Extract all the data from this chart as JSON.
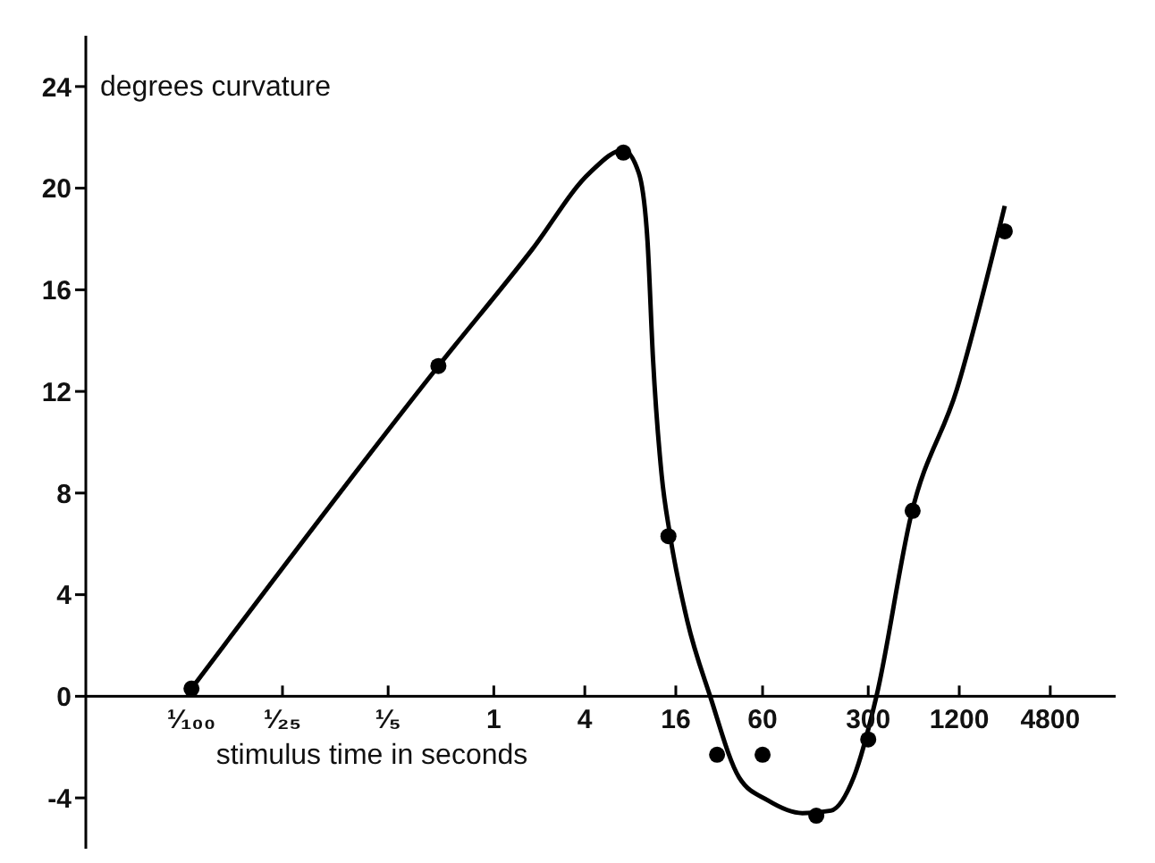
{
  "chart_data": {
    "type": "scatter",
    "xlabel": "stimulus time in seconds",
    "ylabel": "degrees curvature",
    "log": "x",
    "grid": false,
    "xlim": [
      0.002,
      13000
    ],
    "xticks": [
      {
        "value": 0.01,
        "label": "¹⁄₁₀₀"
      },
      {
        "value": 0.04,
        "label": "¹⁄₂₅"
      },
      {
        "value": 0.2,
        "label": "¹⁄₅"
      },
      1,
      4,
      16,
      60,
      300,
      1200,
      4800
    ],
    "ylim": [
      -6,
      26
    ],
    "yticks": [
      -4,
      0,
      4,
      8,
      12,
      16,
      20,
      24
    ],
    "series": [
      {
        "type": "scatter",
        "color": "#000000",
        "marker": "circle",
        "x": [
          0.01,
          0.43,
          7.2,
          14.3,
          30,
          60,
          136,
          300,
          590,
          2400
        ],
        "values": [
          0.3,
          13,
          21.4,
          6.3,
          -2.3,
          -2.3,
          -4.7,
          -1.7,
          7.3,
          18.3
        ]
      },
      {
        "type": "line",
        "color": "#000000",
        "marker": "none",
        "x": [
          0.01,
          0.43,
          1.8,
          4.3,
          7.2,
          9.1,
          10.4,
          11.3,
          12.9,
          14.6,
          19,
          27,
          42,
          65,
          110,
          170,
          240,
          340,
          575,
          1160,
          2400
        ],
        "values": [
          0.3,
          13,
          17.6,
          20.6,
          21.5,
          20.6,
          17.9,
          13.3,
          8.7,
          6.4,
          3.0,
          0,
          -3.2,
          -4.1,
          -4.6,
          -4.5,
          -3.2,
          0,
          7.1,
          12.1,
          19.3
        ]
      }
    ]
  }
}
